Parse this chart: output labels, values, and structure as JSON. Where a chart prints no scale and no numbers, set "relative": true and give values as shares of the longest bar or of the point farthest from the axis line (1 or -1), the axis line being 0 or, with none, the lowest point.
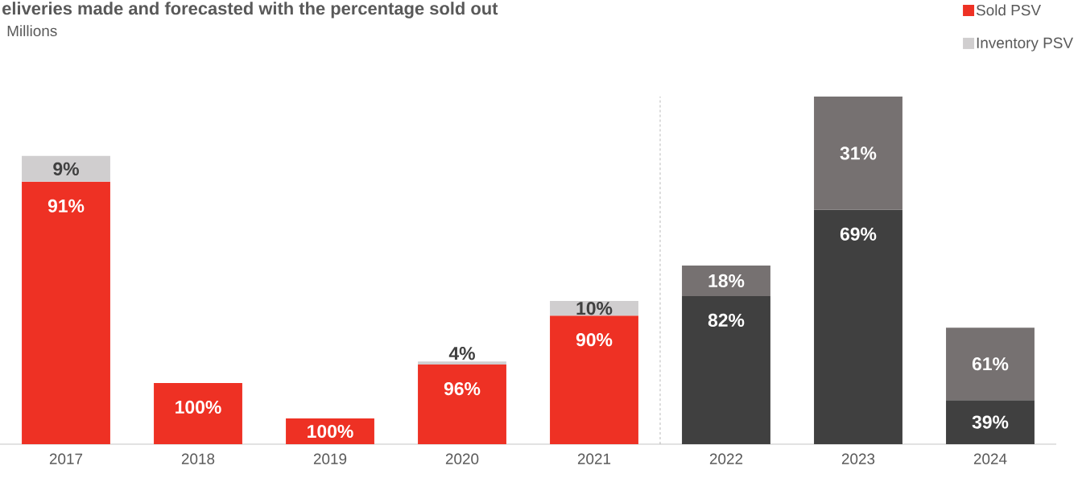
{
  "chart_data": {
    "type": "bar",
    "stacked": true,
    "relative": true,
    "title": "eliveries made and forecasted with the percentage sold out",
    "subtitle": "Millions",
    "categories": [
      "2017",
      "2018",
      "2019",
      "2020",
      "2021",
      "2022",
      "2023",
      "2024"
    ],
    "series": [
      {
        "name": "Sold PSV",
        "color": "#ee3124",
        "colors": [
          "#ee3124",
          "#ee3124",
          "#ee3124",
          "#ee3124",
          "#ee3124",
          "#404040",
          "#404040",
          "#404040"
        ],
        "values": [
          0.755,
          0.176,
          0.074,
          0.229,
          0.37,
          0.426,
          0.674,
          0.127
        ]
      },
      {
        "name": "Inventory PSV",
        "color": "#d0cecf",
        "colors": [
          "#d0cecf",
          "#d0cecf",
          "#d0cecf",
          "#d0cecf",
          "#d0cecf",
          "#767171",
          "#767171",
          "#767171"
        ],
        "values": [
          0.074,
          null,
          null,
          0.009,
          0.042,
          0.088,
          0.326,
          0.208
        ]
      }
    ],
    "annotations": [
      {
        "text": "91%",
        "x": "2017",
        "y": 0.755
      },
      {
        "text": "9%",
        "x": "2017",
        "y": 0.829
      },
      {
        "text": "100%",
        "x": "2018",
        "y": 0.176
      },
      {
        "text": "100%",
        "x": "2019",
        "y": 0.074
      },
      {
        "text": "96%",
        "x": "2020",
        "y": 0.229
      },
      {
        "text": "4%",
        "x": "2020",
        "y": 0.238
      },
      {
        "text": "90%",
        "x": "2021",
        "y": 0.37
      },
      {
        "text": "10%",
        "x": "2021",
        "y": 0.412
      },
      {
        "text": "82%",
        "x": "2022",
        "y": 0.426
      },
      {
        "text": "18%",
        "x": "2022",
        "y": 0.514
      },
      {
        "text": "69%",
        "x": "2023",
        "y": 0.674
      },
      {
        "text": "31%",
        "x": "2023",
        "y": 1.0
      },
      {
        "text": "39%",
        "x": "2024",
        "y": 0.127
      },
      {
        "text": "61%",
        "x": "2024",
        "y": 0.335
      }
    ],
    "legend": "top right"
  }
}
